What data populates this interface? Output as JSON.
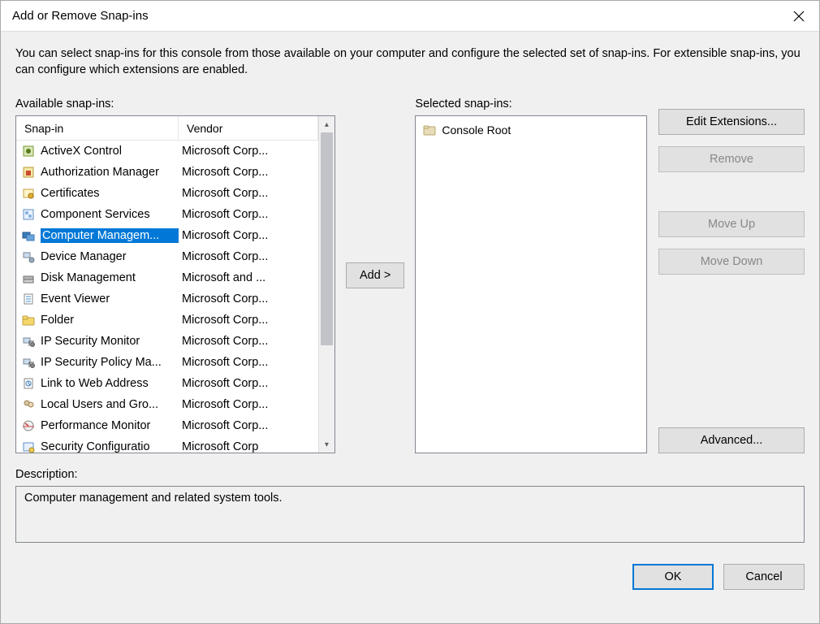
{
  "window": {
    "title": "Add or Remove Snap-ins"
  },
  "intro": "You can select snap-ins for this console from those available on your computer and configure the selected set of snap-ins. For extensible snap-ins, you can configure which extensions are enabled.",
  "labels": {
    "available": "Available snap-ins:",
    "selected": "Selected snap-ins:",
    "description": "Description:"
  },
  "columns": {
    "snapin": "Snap-in",
    "vendor": "Vendor"
  },
  "snapins": [
    {
      "name": "ActiveX Control",
      "vendor": "Microsoft Corp...",
      "icon": "activex",
      "selected": false
    },
    {
      "name": "Authorization Manager",
      "vendor": "Microsoft Corp...",
      "icon": "auth",
      "selected": false
    },
    {
      "name": "Certificates",
      "vendor": "Microsoft Corp...",
      "icon": "cert",
      "selected": false
    },
    {
      "name": "Component Services",
      "vendor": "Microsoft Corp...",
      "icon": "comp",
      "selected": false
    },
    {
      "name": "Computer Managem...",
      "vendor": "Microsoft Corp...",
      "icon": "compmgmt",
      "selected": true
    },
    {
      "name": "Device Manager",
      "vendor": "Microsoft Corp...",
      "icon": "device",
      "selected": false
    },
    {
      "name": "Disk Management",
      "vendor": "Microsoft and ...",
      "icon": "disk",
      "selected": false
    },
    {
      "name": "Event Viewer",
      "vendor": "Microsoft Corp...",
      "icon": "event",
      "selected": false
    },
    {
      "name": "Folder",
      "vendor": "Microsoft Corp...",
      "icon": "folder",
      "selected": false
    },
    {
      "name": "IP Security Monitor",
      "vendor": "Microsoft Corp...",
      "icon": "ipsec",
      "selected": false
    },
    {
      "name": "IP Security Policy Ma...",
      "vendor": "Microsoft Corp...",
      "icon": "ipsec",
      "selected": false
    },
    {
      "name": "Link to Web Address",
      "vendor": "Microsoft Corp...",
      "icon": "link",
      "selected": false
    },
    {
      "name": "Local Users and Gro...",
      "vendor": "Microsoft Corp...",
      "icon": "users",
      "selected": false
    },
    {
      "name": "Performance Monitor",
      "vendor": "Microsoft Corp...",
      "icon": "perf",
      "selected": false
    },
    {
      "name": "Security Configuratio",
      "vendor": "Microsoft Corp",
      "icon": "seccfg",
      "selected": false
    }
  ],
  "selected_tree": {
    "root": "Console Root"
  },
  "buttons": {
    "add": "Add >",
    "edit_ext": "Edit Extensions...",
    "remove": "Remove",
    "move_up": "Move Up",
    "move_down": "Move Down",
    "advanced": "Advanced...",
    "ok": "OK",
    "cancel": "Cancel"
  },
  "description_text": "Computer management and related system tools.",
  "style": {
    "window_bg": "#f0f0f0",
    "border": "#828790",
    "selection_bg": "#0078d7",
    "selection_fg": "#ffffff",
    "btn_bg": "#e1e1e1",
    "btn_border": "#adadad",
    "primary_border": "#0078d7",
    "column_widths": {
      "snapin": 200,
      "vendor": 160
    },
    "listbox_height": 416
  }
}
